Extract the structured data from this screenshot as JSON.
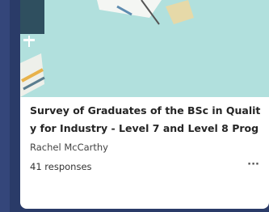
{
  "card": {
    "title_lines": [
      "Survey of Graduates of the BSc in Qualit",
      "y for Industry - Level 7 and Level 8 Prog"
    ],
    "author": "Rachel McCarthy",
    "responses": "41 responses",
    "menu": "···"
  }
}
